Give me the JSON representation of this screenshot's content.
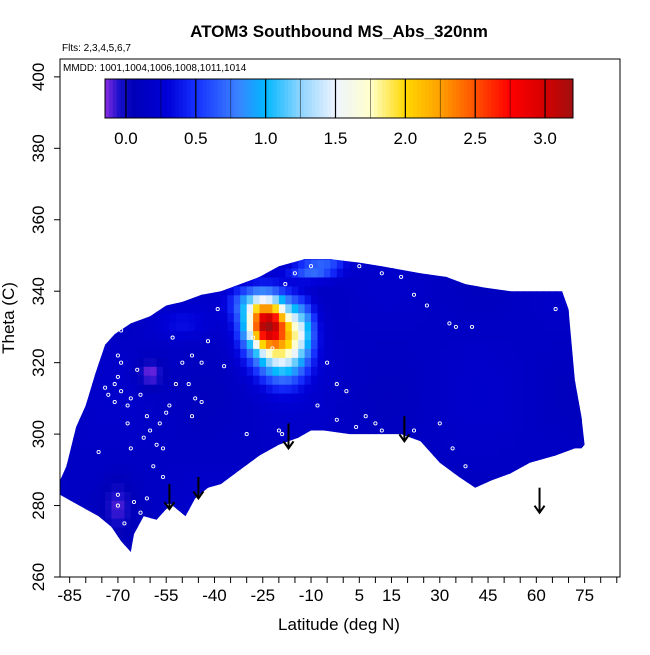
{
  "chart_data": {
    "type": "heatmap",
    "title": "ATOM3 Southbound MS_Abs_320nm",
    "subtitle_flights": "Flts: 2,3,4,5,6,7",
    "subtitle_dates": "MMDD: 1001,1004,1006,1008,1011,1014",
    "xlabel": "Latitude (deg N)",
    "ylabel": "Theta (C)",
    "xlim": [
      -88,
      86
    ],
    "ylim": [
      260,
      405
    ],
    "x_major_ticks": [
      -85,
      -70,
      -55,
      -40,
      -25,
      -10,
      5,
      15,
      30,
      45,
      60,
      75
    ],
    "x_major_tick_labels": [
      "-85",
      "-70",
      "-55",
      "-40",
      "-25",
      "-10",
      "5",
      "15",
      "30",
      "45",
      "60",
      "75"
    ],
    "x_minor_step": 5,
    "y_ticks": [
      260,
      280,
      300,
      320,
      340,
      360,
      380,
      400
    ],
    "y_tick_labels": [
      "260",
      "280",
      "300",
      "320",
      "340",
      "360",
      "380",
      "400"
    ],
    "colorbar": {
      "range": [
        -0.15,
        3.2
      ],
      "ticks": [
        0.0,
        0.5,
        1.0,
        1.5,
        2.0,
        2.5,
        3.0
      ],
      "tick_labels": [
        "0.0",
        "0.5",
        "1.0",
        "1.5",
        "2.0",
        "2.5",
        "3.0"
      ],
      "stops": [
        {
          "v": -0.15,
          "color": "#8a2be2"
        },
        {
          "v": -0.05,
          "color": "#1a10cc"
        },
        {
          "v": 0.05,
          "color": "#0000b8"
        },
        {
          "v": 0.3,
          "color": "#0000d8"
        },
        {
          "v": 0.5,
          "color": "#1530ff"
        },
        {
          "v": 0.8,
          "color": "#3b82ff"
        },
        {
          "v": 1.0,
          "color": "#00b8ff"
        },
        {
          "v": 1.25,
          "color": "#8fd4ff"
        },
        {
          "v": 1.5,
          "color": "#eef4ff"
        },
        {
          "v": 1.75,
          "color": "#ffffcc"
        },
        {
          "v": 2.0,
          "color": "#ffd800"
        },
        {
          "v": 2.25,
          "color": "#ffa000"
        },
        {
          "v": 2.5,
          "color": "#ff5000"
        },
        {
          "v": 2.75,
          "color": "#ff0000"
        },
        {
          "v": 3.0,
          "color": "#d50000"
        },
        {
          "v": 3.2,
          "color": "#a01010"
        }
      ]
    },
    "field_outline": [
      [
        -88,
        287
      ],
      [
        -86,
        291
      ],
      [
        -83,
        302
      ],
      [
        -80,
        308
      ],
      [
        -77,
        317
      ],
      [
        -74,
        325
      ],
      [
        -71,
        328
      ],
      [
        -66,
        331
      ],
      [
        -60,
        333
      ],
      [
        -55,
        336
      ],
      [
        -50,
        337
      ],
      [
        -44,
        339
      ],
      [
        -38,
        340
      ],
      [
        -32,
        342
      ],
      [
        -26,
        344
      ],
      [
        -20,
        347
      ],
      [
        -12,
        349
      ],
      [
        -4,
        349
      ],
      [
        5,
        348
      ],
      [
        12,
        347
      ],
      [
        18,
        346
      ],
      [
        24,
        345
      ],
      [
        32,
        344
      ],
      [
        38,
        342
      ],
      [
        44,
        341
      ],
      [
        52,
        340
      ],
      [
        60,
        340
      ],
      [
        68,
        340
      ],
      [
        70,
        335
      ],
      [
        71,
        325
      ],
      [
        72,
        315
      ],
      [
        74,
        305
      ],
      [
        75,
        297
      ],
      [
        74,
        296
      ],
      [
        72,
        296
      ],
      [
        66,
        294
      ],
      [
        62,
        293
      ],
      [
        58,
        292
      ],
      [
        52,
        289
      ],
      [
        46,
        287
      ],
      [
        41,
        285
      ],
      [
        36,
        288
      ],
      [
        30,
        292
      ],
      [
        24,
        298
      ],
      [
        18,
        300
      ],
      [
        10,
        300
      ],
      [
        2,
        300
      ],
      [
        -6,
        301
      ],
      [
        -10,
        301
      ],
      [
        -14,
        299
      ],
      [
        -20,
        297
      ],
      [
        -26,
        294
      ],
      [
        -32,
        290
      ],
      [
        -38,
        286
      ],
      [
        -42,
        285
      ],
      [
        -46,
        282
      ],
      [
        -49,
        277
      ],
      [
        -53,
        280
      ],
      [
        -55,
        279
      ],
      [
        -58,
        276
      ],
      [
        -62,
        277
      ],
      [
        -65,
        272
      ],
      [
        -66,
        267
      ],
      [
        -69,
        270
      ],
      [
        -72,
        274
      ],
      [
        -76,
        277
      ],
      [
        -80,
        279
      ],
      [
        -84,
        281
      ],
      [
        -88,
        283
      ]
    ],
    "background_value": 0.15,
    "features": [
      {
        "x": -24,
        "y": 331,
        "sx": 4,
        "sy": 4,
        "value": 1.9
      },
      {
        "x": -22,
        "y": 329,
        "sx": 6,
        "sy": 7,
        "value": 1.4
      },
      {
        "x": -18,
        "y": 323,
        "sx": 5,
        "sy": 6,
        "value": 1.0
      },
      {
        "x": -13,
        "y": 330,
        "sx": 3,
        "sy": 5,
        "value": 0.75
      },
      {
        "x": -28,
        "y": 337,
        "sx": 5,
        "sy": 3,
        "value": 0.7
      },
      {
        "x": -10,
        "y": 346,
        "sx": 5,
        "sy": 2,
        "value": 0.75
      },
      {
        "x": -4,
        "y": 348,
        "sx": 4,
        "sy": 2,
        "value": 0.45
      },
      {
        "x": -60,
        "y": 317,
        "sx": 3,
        "sy": 3,
        "value": -0.15
      },
      {
        "x": -50,
        "y": 331,
        "sx": 6,
        "sy": 3,
        "value": 0.35
      },
      {
        "x": -70,
        "y": 280,
        "sx": 3,
        "sy": 5,
        "value": -0.05
      }
    ],
    "samples": [
      [
        -69,
        329
      ],
      [
        -70,
        322
      ],
      [
        -69,
        320
      ],
      [
        -70,
        316
      ],
      [
        -69,
        312
      ],
      [
        -66,
        310
      ],
      [
        -67,
        308
      ],
      [
        -64,
        318
      ],
      [
        -63,
        311
      ],
      [
        -61,
        305
      ],
      [
        -60,
        301
      ],
      [
        -62,
        299
      ],
      [
        -56,
        296
      ],
      [
        -55,
        306
      ],
      [
        -54,
        308
      ],
      [
        -52,
        314
      ],
      [
        -50,
        320
      ],
      [
        -47,
        322
      ],
      [
        -44,
        320
      ],
      [
        -42,
        326
      ],
      [
        -39,
        335
      ],
      [
        -37,
        319
      ],
      [
        -28,
        327
      ],
      [
        -22,
        324
      ],
      [
        -18,
        342
      ],
      [
        -15,
        345
      ],
      [
        -10,
        347
      ],
      [
        5,
        347
      ],
      [
        12,
        345
      ],
      [
        18,
        344
      ],
      [
        22,
        339
      ],
      [
        26,
        336
      ],
      [
        33,
        331
      ],
      [
        35,
        330
      ],
      [
        40,
        330
      ],
      [
        66,
        335
      ],
      [
        -76,
        295
      ],
      [
        -70,
        283
      ],
      [
        -70,
        280
      ],
      [
        -72,
        272
      ],
      [
        -68,
        275
      ],
      [
        -61,
        282
      ],
      [
        -56,
        288
      ],
      [
        -54,
        280
      ],
      [
        -52,
        278
      ],
      [
        -65,
        281
      ],
      [
        -63,
        278
      ],
      [
        -30,
        300
      ],
      [
        -19,
        300
      ],
      [
        -8,
        308
      ],
      [
        -2,
        304
      ],
      [
        4,
        302
      ],
      [
        12,
        301
      ],
      [
        7,
        305
      ],
      [
        30,
        303
      ],
      [
        34,
        296
      ],
      [
        38,
        291
      ],
      [
        -74,
        313
      ],
      [
        -73,
        311
      ],
      [
        -71,
        314
      ],
      [
        -71,
        309
      ],
      [
        -48,
        314
      ],
      [
        -46,
        310
      ],
      [
        -20,
        301
      ],
      [
        10,
        303
      ],
      [
        22,
        301
      ],
      [
        -5,
        320
      ],
      [
        -2,
        314
      ],
      [
        1,
        312
      ],
      [
        -44,
        309
      ],
      [
        -47,
        305
      ],
      [
        -57,
        303
      ],
      [
        -58,
        297
      ],
      [
        -59,
        291
      ],
      [
        -66,
        296
      ],
      [
        -67,
        303
      ],
      [
        -53,
        327
      ]
    ],
    "arrows": [
      {
        "x": -54,
        "y_top": 286,
        "y_tip": 279
      },
      {
        "x": -45,
        "y_top": 288,
        "y_tip": 282
      },
      {
        "x": -17,
        "y_top": 303,
        "y_tip": 296
      },
      {
        "x": 19,
        "y_top": 305,
        "y_tip": 298
      },
      {
        "x": 61,
        "y_top": 285,
        "y_tip": 278
      }
    ]
  }
}
